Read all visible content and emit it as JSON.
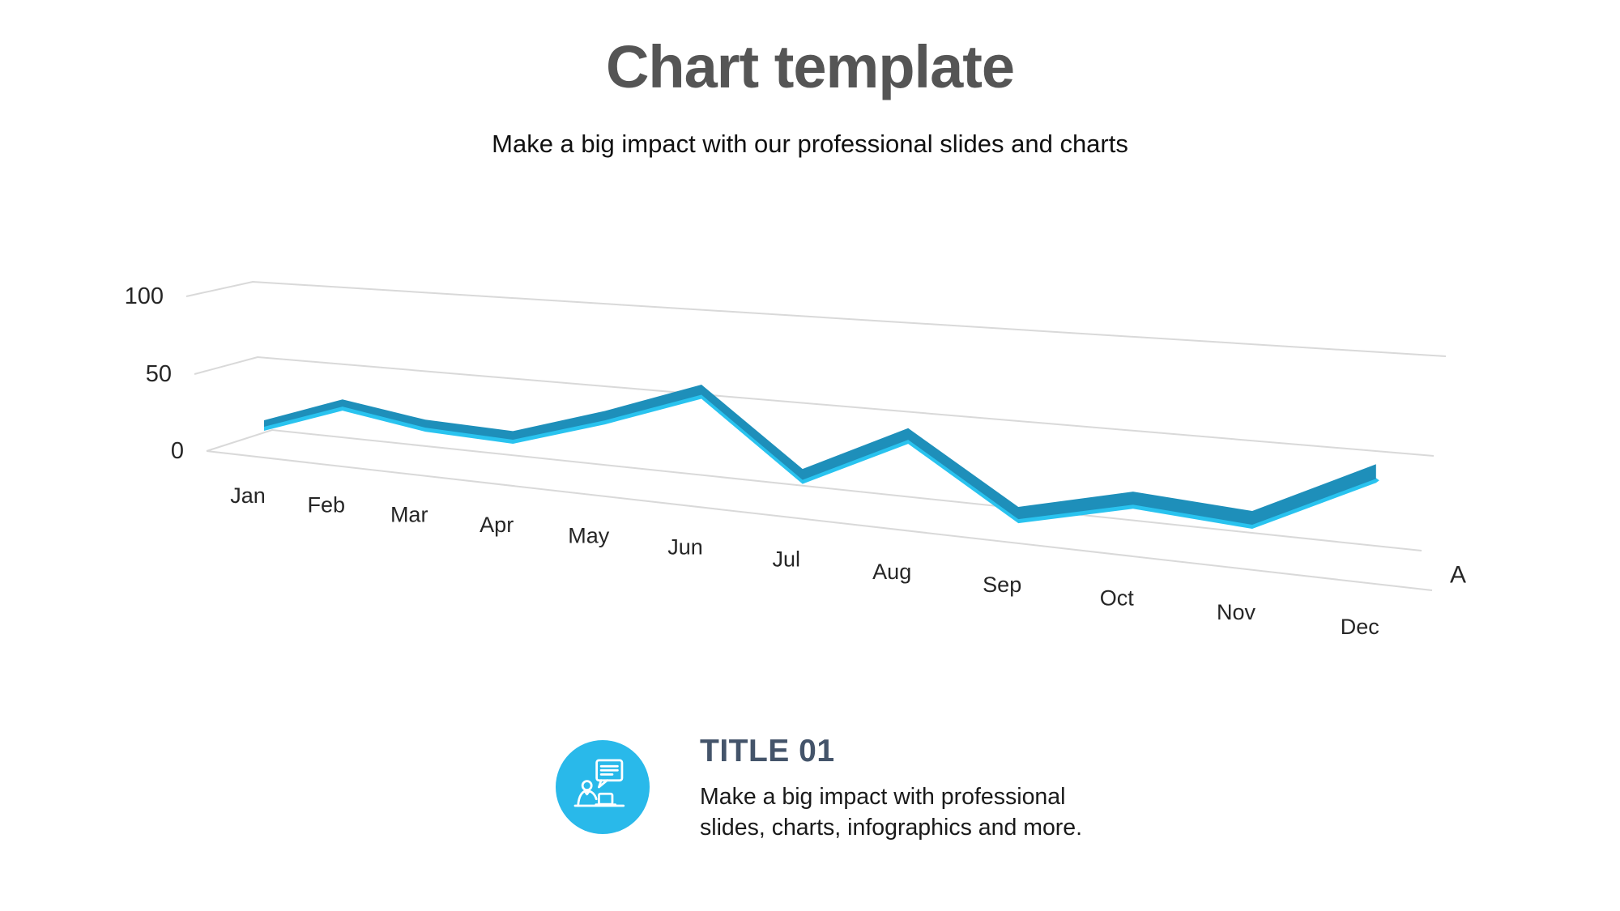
{
  "header": {
    "title": "Chart template",
    "subtitle": "Make a big impact with our professional slides and charts"
  },
  "chart_data": {
    "type": "line",
    "style": "3d-ribbon-perspective",
    "categories": [
      "Jan",
      "Feb",
      "Mar",
      "Apr",
      "May",
      "Jun",
      "Jul",
      "Aug",
      "Sep",
      "Oct",
      "Nov",
      "Dec"
    ],
    "series": [
      {
        "name": "A",
        "values": [
          20,
          38,
          30,
          28,
          45,
          65,
          22,
          50,
          13,
          27,
          23,
          52
        ]
      }
    ],
    "yticks": [
      100,
      50,
      0
    ],
    "ylim": [
      0,
      100
    ],
    "grid": true,
    "legend_position": "series-label-right-of-axis",
    "colors": {
      "ribbon_top": "#1e8fba",
      "ribbon_front": "#29c3ef",
      "gridline": "#d9d9d9",
      "axis_text": "#262626"
    }
  },
  "callout": {
    "title": "TITLE 01",
    "title_color": "#44546a",
    "description": "Make a big impact with professional slides, charts, infographics and more.",
    "icon": "presenter-with-speech-bubble-icon",
    "icon_bg_color": "#29b9ea"
  }
}
